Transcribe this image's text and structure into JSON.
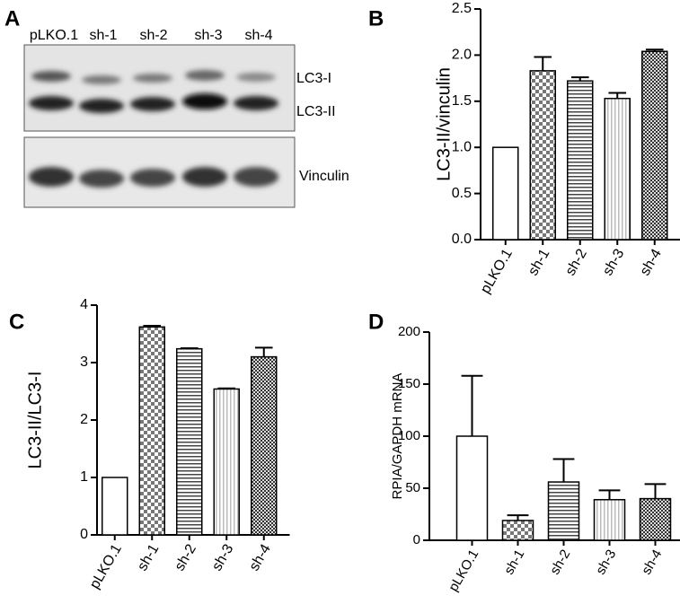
{
  "blot": {
    "panel": "A",
    "lanes": [
      "pLKO.1",
      "sh-1",
      "sh-2",
      "sh-3",
      "sh-4"
    ],
    "bands": [
      "LC3-I",
      "LC3-II",
      "Vinculin"
    ]
  },
  "chart_data": [
    {
      "type": "bar",
      "panel": "B",
      "y_label": "LC3-II/vinculin",
      "categories": [
        "pLKO.1",
        "sh-1",
        "sh-2",
        "sh-3",
        "sh-4"
      ],
      "values": [
        1.0,
        1.83,
        1.72,
        1.53,
        2.04
      ],
      "errors": [
        null,
        0.15,
        0.04,
        0.06,
        0.02
      ],
      "patterns": [
        "none",
        "checker",
        "hlines",
        "vlines",
        "dense-checker"
      ],
      "ylim": [
        0,
        2.5
      ],
      "yticks": [
        {
          "value": 0,
          "label": "0.0"
        },
        0.5,
        {
          "value": 1,
          "label": "1.0"
        },
        1.5,
        {
          "value": 2,
          "label": "2.0"
        },
        2.5
      ]
    },
    {
      "type": "bar",
      "panel": "C",
      "y_label": "LC3-II/LC3-I",
      "categories": [
        "pLKO.1",
        "sh-1",
        "sh-2",
        "sh-3",
        "sh-4"
      ],
      "values": [
        1.0,
        3.62,
        3.24,
        2.54,
        3.1
      ],
      "errors": [
        null,
        0.02,
        0.01,
        0.01,
        0.16
      ],
      "patterns": [
        "none",
        "checker",
        "hlines",
        "vlines",
        "dense-checker"
      ],
      "ylim": [
        0,
        4
      ],
      "yticks": [
        0,
        1,
        2,
        3,
        4
      ]
    },
    {
      "type": "bar",
      "panel": "D",
      "y_label": "RPIA/GAPDH mRNA",
      "categories": [
        "pLKO.1",
        "sh-1",
        "sh-2",
        "sh-3",
        "sh-4"
      ],
      "values": [
        100,
        19,
        56,
        39,
        40
      ],
      "errors": [
        58,
        5,
        22,
        9,
        14
      ],
      "patterns": [
        "none",
        "checker",
        "hlines",
        "vlines",
        "dense-checker"
      ],
      "ylim": [
        0,
        200
      ],
      "yticks": [
        0,
        50,
        100,
        150,
        200
      ]
    }
  ]
}
